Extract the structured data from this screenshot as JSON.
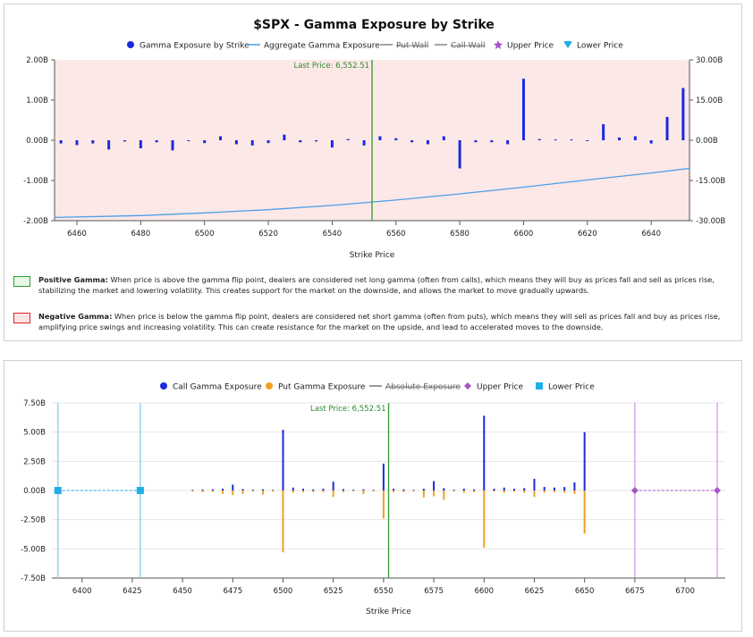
{
  "chart_data": [
    {
      "type": "bar",
      "title": "$SPX - Gamma Exposure by Strike",
      "xlabel": "Strike Price",
      "ylabel": "",
      "xlim": [
        6453,
        6652
      ],
      "ylim": [
        -2.0,
        2.0
      ],
      "y2lim": [
        -30,
        30
      ],
      "grid": false,
      "legend_position": "top",
      "x_ticks": [
        "6460",
        "6480",
        "6500",
        "6520",
        "6540",
        "6560",
        "6580",
        "6600",
        "6620",
        "6640"
      ],
      "x_tick_values": [
        6460,
        6480,
        6500,
        6520,
        6540,
        6560,
        6580,
        6600,
        6620,
        6640
      ],
      "y_ticks": [
        "2.00B",
        "1.00B",
        "0.00B",
        "-1.00B",
        "-2.00B"
      ],
      "y_tick_values": [
        2,
        1,
        0,
        -1,
        -2
      ],
      "y2_ticks": [
        "30.00B",
        "15.00B",
        "0.00B",
        "-15.00B",
        "-30.00B"
      ],
      "y2_tick_values": [
        30,
        15,
        0,
        -15,
        -30
      ],
      "legend": [
        "Gamma Exposure by Strike",
        "Aggregate Gamma Exposure",
        "Put Wall",
        "Call Wall",
        "Upper Price",
        "Lower Price"
      ],
      "last_price_label": "Last Price: 6,552.51",
      "last_price": 6552.51,
      "series": [
        {
          "name": "Gamma Exposure by Strike",
          "color": "#1a2bdc",
          "x": [
            6455,
            6460,
            6465,
            6470,
            6475,
            6480,
            6485,
            6490,
            6495,
            6500,
            6505,
            6510,
            6515,
            6520,
            6525,
            6530,
            6535,
            6540,
            6545,
            6550,
            6555,
            6560,
            6565,
            6570,
            6575,
            6580,
            6585,
            6590,
            6595,
            6600,
            6605,
            6610,
            6615,
            6620,
            6625,
            6630,
            6635,
            6640,
            6645,
            6650
          ],
          "values": [
            -0.08,
            -0.12,
            -0.08,
            -0.23,
            -0.03,
            -0.2,
            -0.05,
            -0.25,
            -0.02,
            -0.07,
            0.1,
            -0.1,
            -0.13,
            -0.07,
            0.14,
            -0.05,
            -0.03,
            -0.18,
            0.03,
            -0.13,
            0.1,
            0.05,
            -0.05,
            -0.1,
            0.1,
            -0.7,
            -0.05,
            -0.05,
            -0.1,
            1.53,
            0.03,
            0.02,
            0.02,
            -0.02,
            0.4,
            0.07,
            0.1,
            -0.08,
            0.58,
            1.3
          ]
        },
        {
          "name": "Aggregate Gamma Exposure",
          "color": "#4a9fe8",
          "x": [
            6453,
            6480,
            6500,
            6520,
            6540,
            6560,
            6580,
            6600,
            6620,
            6640,
            6652
          ],
          "values": [
            -28.8,
            -28.1,
            -27.1,
            -25.9,
            -24.3,
            -22.3,
            -20.0,
            -17.5,
            -14.8,
            -12.2,
            -10.5
          ]
        }
      ],
      "regions": {
        "positive_color": "#fde8e8"
      },
      "notes": [
        {
          "label": "Positive Gamma:",
          "text": " When price is above the gamma flip point, dealers are considered net long gamma (often from calls), which means they will buy as prices fall and sell as prices rise, stabilizing the market and lowering volatility. This creates support for the market on the downside, and allows the market to move gradually upwards.",
          "swatch_fill": "#e8f8e8",
          "swatch_border": "#2ca02c"
        },
        {
          "label": "Negative Gamma:",
          "text": " When price is below the gamma flip point, dealers are considered net short gamma (often from puts), which means they will sell as prices fall and buy as prices rise, amplifying price swings and increasing volatility. This can create resistance for the market on the upside, and lead to accelerated moves to the downside.",
          "swatch_fill": "#fde4e4",
          "swatch_border": "#d62728"
        }
      ]
    },
    {
      "type": "bar",
      "title": "",
      "xlabel": "Strike Price",
      "ylabel": "",
      "xlim": [
        6385,
        6720
      ],
      "ylim": [
        -7.5,
        7.5
      ],
      "grid": "horizontal",
      "legend_position": "top",
      "x_ticks": [
        "6400",
        "6425",
        "6450",
        "6475",
        "6500",
        "6525",
        "6550",
        "6575",
        "6600",
        "6625",
        "6650",
        "6675",
        "6700"
      ],
      "x_tick_values": [
        6400,
        6425,
        6450,
        6475,
        6500,
        6525,
        6550,
        6575,
        6600,
        6625,
        6650,
        6675,
        6700
      ],
      "y_ticks": [
        "7.50B",
        "5.00B",
        "2.50B",
        "0.00B",
        "-2.50B",
        "-5.00B",
        "-7.50B"
      ],
      "y_tick_values": [
        7.5,
        5,
        2.5,
        0,
        -2.5,
        -5,
        -7.5
      ],
      "legend": [
        "Call Gamma Exposure",
        "Put Gamma Exposure",
        "Absolute Exposure",
        "Upper Price",
        "Lower Price"
      ],
      "last_price_label": "Last Price: 6,552.51",
      "last_price": 6552.51,
      "series": [
        {
          "name": "Call Gamma Exposure",
          "color": "#1a2bdc",
          "x": [
            6455,
            6460,
            6465,
            6470,
            6475,
            6480,
            6485,
            6490,
            6495,
            6500,
            6505,
            6510,
            6515,
            6520,
            6525,
            6530,
            6535,
            6540,
            6545,
            6550,
            6555,
            6560,
            6565,
            6570,
            6575,
            6580,
            6585,
            6590,
            6595,
            6600,
            6605,
            6610,
            6615,
            6620,
            6625,
            6630,
            6635,
            6640,
            6645,
            6650
          ],
          "values": [
            0.05,
            0.08,
            0.1,
            0.15,
            0.5,
            0.12,
            0.06,
            0.1,
            0.05,
            5.2,
            0.25,
            0.15,
            0.1,
            0.15,
            0.75,
            0.12,
            0.06,
            0.1,
            0.05,
            2.3,
            0.15,
            0.1,
            0.05,
            0.15,
            0.8,
            0.2,
            0.06,
            0.15,
            0.1,
            6.4,
            0.15,
            0.25,
            0.15,
            0.2,
            1.0,
            0.3,
            0.25,
            0.3,
            0.7,
            5.0
          ]
        },
        {
          "name": "Put Gamma Exposure",
          "color": "#f2a01e",
          "x": [
            6455,
            6460,
            6465,
            6470,
            6475,
            6480,
            6485,
            6490,
            6495,
            6500,
            6505,
            6510,
            6515,
            6520,
            6525,
            6530,
            6535,
            6540,
            6545,
            6550,
            6555,
            6560,
            6565,
            6570,
            6575,
            6580,
            6585,
            6590,
            6595,
            6600,
            6605,
            6610,
            6615,
            6620,
            6625,
            6630,
            6635,
            6640,
            6645,
            6650
          ],
          "values": [
            -0.1,
            -0.15,
            -0.12,
            -0.3,
            -0.4,
            -0.3,
            -0.1,
            -0.35,
            -0.1,
            -5.3,
            -0.2,
            -0.15,
            -0.15,
            -0.15,
            -0.55,
            -0.15,
            -0.08,
            -0.3,
            -0.08,
            -2.4,
            -0.15,
            -0.15,
            -0.1,
            -0.6,
            -0.5,
            -0.8,
            -0.1,
            -0.2,
            -0.15,
            -4.9,
            -0.1,
            -0.2,
            -0.12,
            -0.2,
            -0.55,
            -0.2,
            -0.15,
            -0.2,
            -0.3,
            -3.7
          ]
        },
        {
          "name": "Lower Price",
          "color": "#22aee8",
          "x": [
            6388,
            6429
          ],
          "values": [
            0,
            0
          ]
        },
        {
          "name": "Upper Price",
          "color": "#a855c8",
          "x": [
            6675,
            6716
          ],
          "values": [
            0,
            0
          ]
        }
      ]
    }
  ]
}
